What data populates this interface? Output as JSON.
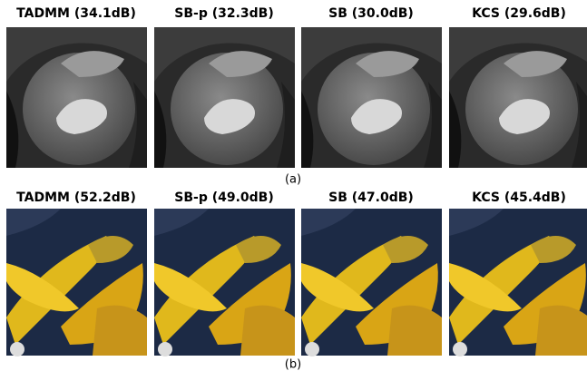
{
  "rows": [
    {
      "panels": [
        "TADMM (34.1dB)",
        "SB-p (32.3dB)",
        "SB (30.0dB)",
        "KCS (29.6dB)"
      ],
      "caption": "(a)"
    },
    {
      "panels": [
        "TADMM (52.2dB)",
        "SB-p (49.0dB)",
        "SB (47.0dB)",
        "KCS (45.4dB)"
      ],
      "caption": "(b)"
    }
  ]
}
